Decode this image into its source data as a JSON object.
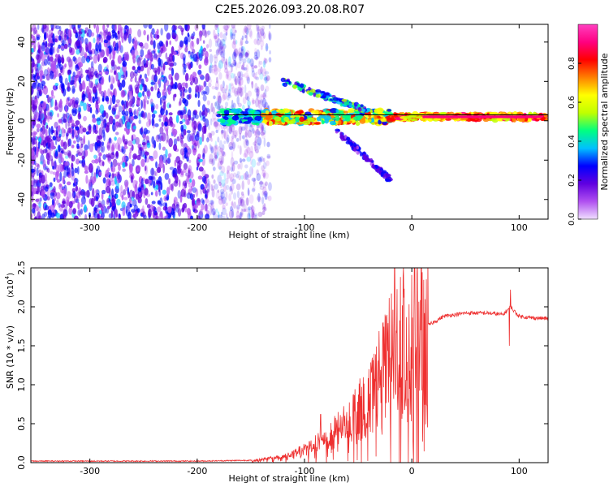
{
  "title": "C2E5.2026.093.20.08.R07",
  "chart_data": [
    {
      "type": "heatmap",
      "name": "spectrogram",
      "xlabel": "Height of straight line (km)",
      "ylabel": "Frequency (Hz)",
      "xlim": [
        -355,
        127
      ],
      "ylim": [
        -50,
        49
      ],
      "xticks": [
        -300,
        -200,
        -100,
        0,
        100
      ],
      "xtick_labels": [
        "-300",
        "-200",
        "-100",
        "0",
        "100"
      ],
      "yticks": [
        -40,
        -20,
        0,
        20,
        40
      ],
      "ytick_labels": [
        "-40",
        "-20",
        "0",
        "20",
        "40"
      ],
      "colorbar": {
        "label": "Normalized spectral amplitude",
        "range": [
          0,
          1
        ],
        "ticks": [
          0.0,
          0.2,
          0.4,
          0.6,
          0.8
        ],
        "tick_labels": [
          "0.0",
          "0.2",
          "0.4",
          "0.6",
          "0.8"
        ],
        "colormap": [
          "#f0e0ff",
          "#b050f0",
          "#6000e0",
          "#0000ff",
          "#00c0ff",
          "#00ff80",
          "#c0ff00",
          "#ffff00",
          "#ff8000",
          "#ff0000",
          "#ff0080",
          "#ff40c0"
        ]
      },
      "regions": {
        "noise_floor": {
          "x_range": [
            -355,
            -140
          ],
          "freq_range": [
            -50,
            49
          ],
          "amplitude": 0.1
        },
        "main_signal": {
          "x_range": [
            -180,
            127
          ],
          "freq_center": 2,
          "amplitude_peak": 0.9
        },
        "upper_branch": {
          "x_range": [
            -120,
            -40
          ],
          "freq_range": [
            20,
            5
          ]
        },
        "lower_branch": {
          "x_range": [
            -70,
            -20
          ],
          "freq_range": [
            -5,
            -30
          ]
        }
      }
    },
    {
      "type": "line",
      "name": "snr",
      "xlabel": "Height of straight line (km)",
      "ylabel": "SNR (10 * v/v)",
      "multiplier": "(x10",
      "multiplier_exp": "4",
      "xlim": [
        -355,
        127
      ],
      "ylim": [
        0,
        2.5
      ],
      "xticks": [
        -300,
        -200,
        -100,
        0,
        100
      ],
      "xtick_labels": [
        "-300",
        "-200",
        "-100",
        "0",
        "100"
      ],
      "yticks": [
        0.0,
        0.5,
        1.0,
        1.5,
        2.0,
        2.5
      ],
      "ytick_labels": [
        "0.0",
        "0.5",
        "1.0",
        "1.5",
        "2.0",
        "2.5"
      ],
      "color": "#ee3030",
      "series": [
        {
          "name": "SNR",
          "x": [
            -355,
            -300,
            -200,
            -150,
            -120,
            -100,
            -80,
            -60,
            -40,
            -30,
            -20,
            -15,
            -10,
            0,
            10,
            20,
            30,
            50,
            70,
            85,
            92,
            95,
            100,
            110,
            127
          ],
          "y": [
            0.02,
            0.02,
            0.02,
            0.03,
            0.08,
            0.18,
            0.32,
            0.55,
            0.8,
            1.05,
            1.3,
            1.45,
            1.55,
            1.62,
            1.72,
            1.8,
            1.88,
            1.92,
            1.92,
            1.9,
            2.0,
            1.95,
            1.88,
            1.86,
            1.85
          ]
        }
      ],
      "spikes": [
        {
          "x": -16,
          "y": 2.5
        },
        {
          "x": -25,
          "y": 1.9
        },
        {
          "x": -40,
          "y": 1.2
        },
        {
          "x": -85,
          "y": 0.62
        },
        {
          "x": 92,
          "y": 2.22
        },
        {
          "x": 91,
          "y": 1.5
        }
      ]
    }
  ]
}
